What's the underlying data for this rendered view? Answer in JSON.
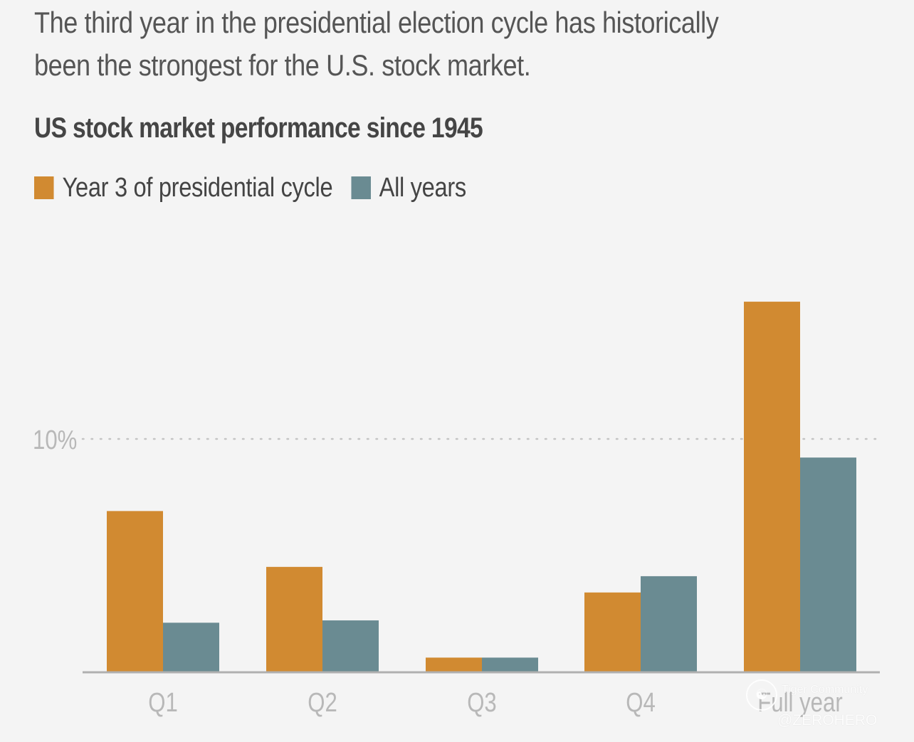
{
  "subtitle": "The third year in the presidential election cycle has historically been the strongest for the U.S. stock market.",
  "chart_data": {
    "type": "bar",
    "title": "US stock market performance since 1945",
    "categories": [
      "Q1",
      "Q2",
      "Q3",
      "Q4",
      "Full year"
    ],
    "series": [
      {
        "name": "Year 3 of presidential cycle",
        "color": "#d18a31",
        "values": [
          6.9,
          4.5,
          0.6,
          3.4,
          15.9
        ]
      },
      {
        "name": "All years",
        "color": "#6a8b92",
        "values": [
          2.1,
          2.2,
          0.6,
          4.1,
          9.2
        ]
      }
    ],
    "ylim": [
      0,
      17.5
    ],
    "gridlines": [
      10
    ],
    "ytick_labels": [
      "10%"
    ],
    "xlabel": "",
    "ylabel": ""
  },
  "watermark": {
    "logo_icon": "tiger-logo-icon",
    "brand": "Tiger Community",
    "user": "@ZEROHERO"
  }
}
